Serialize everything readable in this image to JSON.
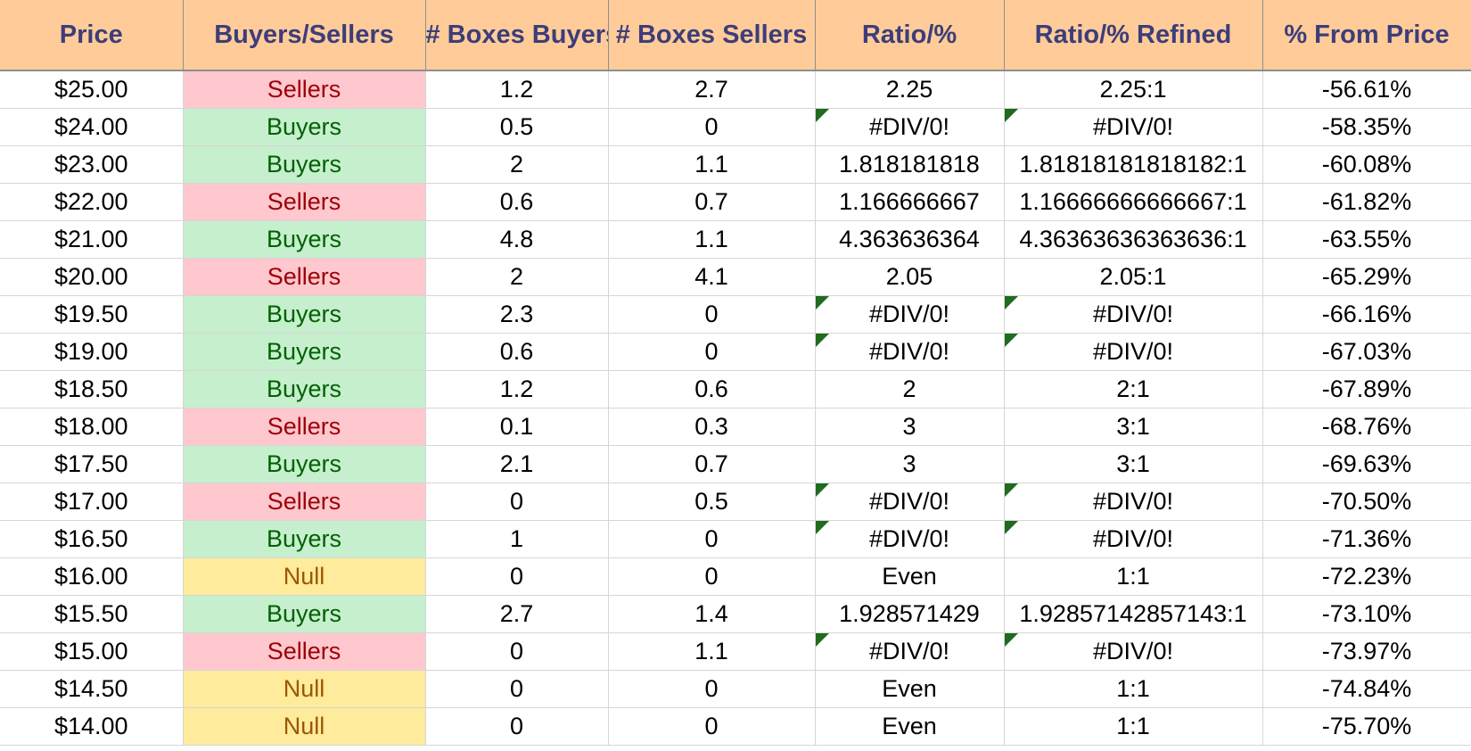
{
  "colors": {
    "header_bg": "#ffcc99",
    "header_text": "#3d3d7a",
    "buyers_bg": "#c6efce",
    "buyers_text": "#006100",
    "sellers_bg": "#ffc7ce",
    "sellers_text": "#9c0006",
    "null_bg": "#ffeb9c",
    "null_text": "#9c5700",
    "error_flag": "#1f6b1f"
  },
  "table": {
    "headers": [
      "Price",
      "Buyers/Sellers",
      "# Boxes Buyers",
      "# Boxes Sellers",
      "Ratio/%",
      "Ratio/% Refined",
      "% From Price"
    ],
    "rows": [
      {
        "price": "$25.00",
        "side": "Sellers",
        "buyers": "1.2",
        "sellers": "2.7",
        "ratio": "2.25",
        "refined": "2.25:1",
        "from_price": "-56.61%",
        "error": false
      },
      {
        "price": "$24.00",
        "side": "Buyers",
        "buyers": "0.5",
        "sellers": "0",
        "ratio": "#DIV/0!",
        "refined": "#DIV/0!",
        "from_price": "-58.35%",
        "error": true
      },
      {
        "price": "$23.00",
        "side": "Buyers",
        "buyers": "2",
        "sellers": "1.1",
        "ratio": "1.818181818",
        "refined": "1.81818181818182:1",
        "from_price": "-60.08%",
        "error": false
      },
      {
        "price": "$22.00",
        "side": "Sellers",
        "buyers": "0.6",
        "sellers": "0.7",
        "ratio": "1.166666667",
        "refined": "1.16666666666667:1",
        "from_price": "-61.82%",
        "error": false
      },
      {
        "price": "$21.00",
        "side": "Buyers",
        "buyers": "4.8",
        "sellers": "1.1",
        "ratio": "4.363636364",
        "refined": "4.36363636363636:1",
        "from_price": "-63.55%",
        "error": false
      },
      {
        "price": "$20.00",
        "side": "Sellers",
        "buyers": "2",
        "sellers": "4.1",
        "ratio": "2.05",
        "refined": "2.05:1",
        "from_price": "-65.29%",
        "error": false
      },
      {
        "price": "$19.50",
        "side": "Buyers",
        "buyers": "2.3",
        "sellers": "0",
        "ratio": "#DIV/0!",
        "refined": "#DIV/0!",
        "from_price": "-66.16%",
        "error": true
      },
      {
        "price": "$19.00",
        "side": "Buyers",
        "buyers": "0.6",
        "sellers": "0",
        "ratio": "#DIV/0!",
        "refined": "#DIV/0!",
        "from_price": "-67.03%",
        "error": true
      },
      {
        "price": "$18.50",
        "side": "Buyers",
        "buyers": "1.2",
        "sellers": "0.6",
        "ratio": "2",
        "refined": "2:1",
        "from_price": "-67.89%",
        "error": false
      },
      {
        "price": "$18.00",
        "side": "Sellers",
        "buyers": "0.1",
        "sellers": "0.3",
        "ratio": "3",
        "refined": "3:1",
        "from_price": "-68.76%",
        "error": false
      },
      {
        "price": "$17.50",
        "side": "Buyers",
        "buyers": "2.1",
        "sellers": "0.7",
        "ratio": "3",
        "refined": "3:1",
        "from_price": "-69.63%",
        "error": false
      },
      {
        "price": "$17.00",
        "side": "Sellers",
        "buyers": "0",
        "sellers": "0.5",
        "ratio": "#DIV/0!",
        "refined": "#DIV/0!",
        "from_price": "-70.50%",
        "error": true
      },
      {
        "price": "$16.50",
        "side": "Buyers",
        "buyers": "1",
        "sellers": "0",
        "ratio": "#DIV/0!",
        "refined": "#DIV/0!",
        "from_price": "-71.36%",
        "error": true
      },
      {
        "price": "$16.00",
        "side": "Null",
        "buyers": "0",
        "sellers": "0",
        "ratio": "Even",
        "refined": "1:1",
        "from_price": "-72.23%",
        "error": false
      },
      {
        "price": "$15.50",
        "side": "Buyers",
        "buyers": "2.7",
        "sellers": "1.4",
        "ratio": "1.928571429",
        "refined": "1.92857142857143:1",
        "from_price": "-73.10%",
        "error": false
      },
      {
        "price": "$15.00",
        "side": "Sellers",
        "buyers": "0",
        "sellers": "1.1",
        "ratio": "#DIV/0!",
        "refined": "#DIV/0!",
        "from_price": "-73.97%",
        "error": true
      },
      {
        "price": "$14.50",
        "side": "Null",
        "buyers": "0",
        "sellers": "0",
        "ratio": "Even",
        "refined": "1:1",
        "from_price": "-74.84%",
        "error": false
      },
      {
        "price": "$14.00",
        "side": "Null",
        "buyers": "0",
        "sellers": "0",
        "ratio": "Even",
        "refined": "1:1",
        "from_price": "-75.70%",
        "error": false
      }
    ]
  }
}
